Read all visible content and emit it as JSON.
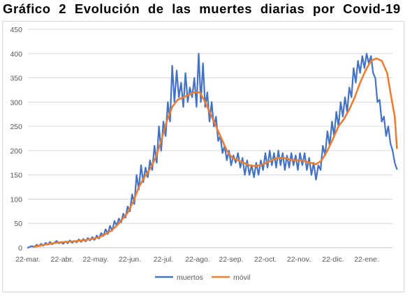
{
  "title": "Gráfico 2 Evolución de las muertes diarias por Covid-19",
  "chart_data": {
    "type": "line",
    "title": "Gráfico 2 Evolución de las muertes diarias por Covid-19",
    "xlabel": "",
    "ylabel": "",
    "x_ticks": [
      "22-mar.",
      "22-abr.",
      "22-may.",
      "22-jun.",
      "22-jul.",
      "22-ago.",
      "22-sep.",
      "22-oct.",
      "22-nov.",
      "22-dic.",
      "22-ene."
    ],
    "y_ticks": [
      0,
      50,
      100,
      150,
      200,
      250,
      300,
      350,
      400,
      450
    ],
    "ylim": [
      0,
      450
    ],
    "grid": true,
    "legend": "bottom",
    "x_unit": "days since 22-mar.",
    "series": [
      {
        "name": "muertos",
        "color": "#4472c4",
        "points": [
          [
            0,
            0
          ],
          [
            3,
            3
          ],
          [
            6,
            2
          ],
          [
            8,
            6
          ],
          [
            10,
            3
          ],
          [
            12,
            8
          ],
          [
            14,
            4
          ],
          [
            16,
            10
          ],
          [
            18,
            6
          ],
          [
            20,
            12
          ],
          [
            22,
            7
          ],
          [
            24,
            10
          ],
          [
            26,
            14
          ],
          [
            28,
            9
          ],
          [
            30,
            11
          ],
          [
            32,
            8
          ],
          [
            34,
            13
          ],
          [
            36,
            9
          ],
          [
            38,
            15
          ],
          [
            40,
            10
          ],
          [
            42,
            14
          ],
          [
            44,
            11
          ],
          [
            46,
            17
          ],
          [
            48,
            12
          ],
          [
            50,
            18
          ],
          [
            52,
            13
          ],
          [
            54,
            20
          ],
          [
            56,
            15
          ],
          [
            58,
            22
          ],
          [
            60,
            16
          ],
          [
            62,
            25
          ],
          [
            64,
            19
          ],
          [
            66,
            30
          ],
          [
            68,
            24
          ],
          [
            70,
            38
          ],
          [
            72,
            28
          ],
          [
            74,
            45
          ],
          [
            76,
            35
          ],
          [
            78,
            55
          ],
          [
            80,
            45
          ],
          [
            82,
            60
          ],
          [
            84,
            52
          ],
          [
            86,
            70
          ],
          [
            88,
            62
          ],
          [
            90,
            85
          ],
          [
            92,
            75
          ],
          [
            94,
            110
          ],
          [
            96,
            90
          ],
          [
            98,
            150
          ],
          [
            100,
            120
          ],
          [
            102,
            170
          ],
          [
            104,
            135
          ],
          [
            106,
            165
          ],
          [
            108,
            145
          ],
          [
            110,
            180
          ],
          [
            112,
            160
          ],
          [
            114,
            210
          ],
          [
            116,
            175
          ],
          [
            118,
            250
          ],
          [
            120,
            200
          ],
          [
            122,
            260
          ],
          [
            124,
            230
          ],
          [
            126,
            300
          ],
          [
            128,
            260
          ],
          [
            130,
            375
          ],
          [
            132,
            300
          ],
          [
            134,
            365
          ],
          [
            136,
            310
          ],
          [
            138,
            340
          ],
          [
            140,
            290
          ],
          [
            142,
            360
          ],
          [
            144,
            300
          ],
          [
            146,
            330
          ],
          [
            148,
            310
          ],
          [
            150,
            350
          ],
          [
            152,
            290
          ],
          [
            154,
            400
          ],
          [
            156,
            300
          ],
          [
            158,
            380
          ],
          [
            160,
            290
          ],
          [
            162,
            320
          ],
          [
            164,
            260
          ],
          [
            166,
            300
          ],
          [
            168,
            250
          ],
          [
            170,
            270
          ],
          [
            172,
            220
          ],
          [
            174,
            230
          ],
          [
            176,
            195
          ],
          [
            178,
            210
          ],
          [
            180,
            180
          ],
          [
            182,
            200
          ],
          [
            184,
            170
          ],
          [
            186,
            190
          ],
          [
            188,
            175
          ],
          [
            190,
            195
          ],
          [
            192,
            165
          ],
          [
            194,
            185
          ],
          [
            196,
            150
          ],
          [
            198,
            180
          ],
          [
            200,
            150
          ],
          [
            202,
            170
          ],
          [
            204,
            145
          ],
          [
            206,
            175
          ],
          [
            208,
            150
          ],
          [
            210,
            180
          ],
          [
            212,
            160
          ],
          [
            214,
            195
          ],
          [
            216,
            165
          ],
          [
            218,
            200
          ],
          [
            220,
            170
          ],
          [
            222,
            195
          ],
          [
            224,
            165
          ],
          [
            226,
            200
          ],
          [
            228,
            170
          ],
          [
            230,
            195
          ],
          [
            232,
            160
          ],
          [
            234,
            190
          ],
          [
            236,
            165
          ],
          [
            238,
            195
          ],
          [
            240,
            170
          ],
          [
            242,
            190
          ],
          [
            244,
            160
          ],
          [
            246,
            195
          ],
          [
            248,
            170
          ],
          [
            250,
            195
          ],
          [
            252,
            160
          ],
          [
            254,
            185
          ],
          [
            256,
            150
          ],
          [
            258,
            175
          ],
          [
            260,
            140
          ],
          [
            262,
            170
          ],
          [
            264,
            160
          ],
          [
            266,
            210
          ],
          [
            268,
            190
          ],
          [
            270,
            240
          ],
          [
            272,
            210
          ],
          [
            274,
            260
          ],
          [
            276,
            230
          ],
          [
            278,
            280
          ],
          [
            280,
            250
          ],
          [
            282,
            300
          ],
          [
            284,
            270
          ],
          [
            286,
            310
          ],
          [
            288,
            280
          ],
          [
            290,
            330
          ],
          [
            292,
            310
          ],
          [
            294,
            370
          ],
          [
            296,
            340
          ],
          [
            298,
            385
          ],
          [
            300,
            360
          ],
          [
            302,
            395
          ],
          [
            304,
            370
          ],
          [
            306,
            400
          ],
          [
            308,
            380
          ],
          [
            310,
            395
          ],
          [
            312,
            360
          ],
          [
            314,
            350
          ],
          [
            316,
            300
          ],
          [
            318,
            305
          ],
          [
            320,
            260
          ],
          [
            322,
            270
          ],
          [
            324,
            230
          ],
          [
            326,
            250
          ],
          [
            328,
            215
          ],
          [
            330,
            200
          ],
          [
            332,
            175
          ],
          [
            334,
            162
          ]
        ]
      },
      {
        "name": "móvil",
        "color": "#ed7d31",
        "points": [
          [
            6,
            2
          ],
          [
            10,
            4
          ],
          [
            15,
            6
          ],
          [
            20,
            8
          ],
          [
            25,
            10
          ],
          [
            30,
            11
          ],
          [
            35,
            12
          ],
          [
            40,
            13
          ],
          [
            45,
            14
          ],
          [
            50,
            15
          ],
          [
            55,
            17
          ],
          [
            60,
            19
          ],
          [
            65,
            22
          ],
          [
            70,
            28
          ],
          [
            75,
            35
          ],
          [
            80,
            45
          ],
          [
            85,
            58
          ],
          [
            90,
            72
          ],
          [
            95,
            95
          ],
          [
            100,
            125
          ],
          [
            105,
            145
          ],
          [
            110,
            162
          ],
          [
            115,
            185
          ],
          [
            120,
            220
          ],
          [
            125,
            260
          ],
          [
            130,
            290
          ],
          [
            135,
            305
          ],
          [
            140,
            310
          ],
          [
            145,
            315
          ],
          [
            150,
            320
          ],
          [
            155,
            320
          ],
          [
            160,
            300
          ],
          [
            165,
            275
          ],
          [
            170,
            250
          ],
          [
            175,
            225
          ],
          [
            180,
            200
          ],
          [
            185,
            185
          ],
          [
            190,
            180
          ],
          [
            195,
            175
          ],
          [
            200,
            170
          ],
          [
            205,
            168
          ],
          [
            210,
            170
          ],
          [
            215,
            175
          ],
          [
            220,
            180
          ],
          [
            225,
            185
          ],
          [
            230,
            185
          ],
          [
            235,
            183
          ],
          [
            240,
            180
          ],
          [
            245,
            180
          ],
          [
            250,
            178
          ],
          [
            255,
            175
          ],
          [
            260,
            172
          ],
          [
            265,
            180
          ],
          [
            270,
            200
          ],
          [
            275,
            225
          ],
          [
            280,
            250
          ],
          [
            285,
            265
          ],
          [
            290,
            285
          ],
          [
            295,
            310
          ],
          [
            300,
            340
          ],
          [
            305,
            365
          ],
          [
            310,
            385
          ],
          [
            315,
            390
          ],
          [
            320,
            385
          ],
          [
            325,
            360
          ],
          [
            328,
            320
          ],
          [
            332,
            270
          ],
          [
            334,
            205
          ]
        ]
      }
    ]
  }
}
